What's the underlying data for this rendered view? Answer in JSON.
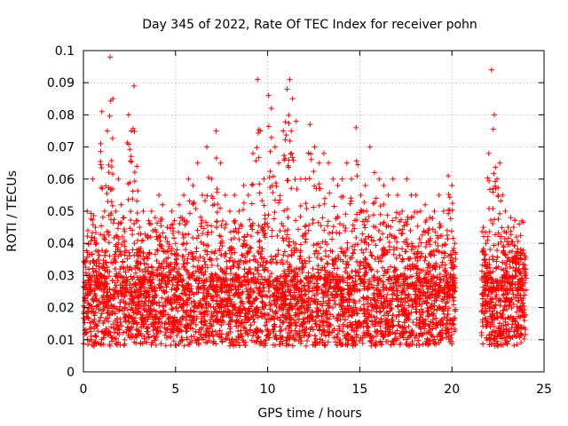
{
  "chart_data": {
    "type": "scatter",
    "title": "Day 345 of 2022, Rate Of TEC Index for receiver pohn",
    "xlabel": "GPS time / hours",
    "ylabel": "ROTI / TECUs",
    "xlim": [
      0,
      25
    ],
    "ylim": [
      0,
      0.1
    ],
    "xticks": [
      "0",
      "5",
      "10",
      "15",
      "20",
      "25"
    ],
    "yticks": [
      "0",
      "0.01",
      "0.02",
      "0.03",
      "0.04",
      "0.05",
      "0.06",
      "0.07",
      "0.08",
      "0.09",
      "0.1"
    ],
    "grid": true,
    "legend": "none",
    "marker": "+",
    "color": "#ff0000",
    "data_gap_hours": [
      20.2,
      21.6
    ],
    "series": [
      {
        "x": [
          0.05,
          0.2,
          0.35,
          0.5,
          0.65,
          0.8,
          1.0,
          1.15,
          1.3,
          1.45,
          1.6,
          1.75,
          1.9,
          2.05,
          2.2,
          2.45,
          2.6,
          2.75,
          2.9,
          3.05,
          3.25,
          3.5,
          3.7,
          3.9,
          4.1,
          4.3,
          4.55,
          4.8,
          5.0,
          5.2,
          5.45,
          5.7,
          5.95,
          6.2,
          6.45,
          6.7,
          6.95,
          7.2,
          7.45,
          7.7,
          7.95,
          8.2,
          8.45,
          8.7,
          8.95,
          9.2,
          9.45,
          9.6,
          9.8,
          10.05,
          10.2,
          10.4,
          10.6,
          10.85,
          11.05,
          11.2,
          11.35,
          11.55,
          11.8,
          12.05,
          12.3,
          12.55,
          12.8,
          13.05,
          13.3,
          13.55,
          13.8,
          14.05,
          14.3,
          14.55,
          14.8,
          15.05,
          15.3,
          15.55,
          15.8,
          16.05,
          16.3,
          16.55,
          16.8,
          17.05,
          17.3,
          17.55,
          17.8,
          18.05,
          18.3,
          18.55,
          18.8,
          19.05,
          19.3,
          19.55,
          19.8,
          20.0,
          20.15,
          21.7,
          21.85,
          22.0,
          22.15,
          22.3,
          22.45,
          22.6,
          22.75,
          22.9,
          23.05,
          23.2,
          23.35,
          23.5,
          23.65,
          23.8,
          23.95
        ],
        "y": [
          0.034,
          0.05,
          0.03,
          0.06,
          0.045,
          0.035,
          0.081,
          0.05,
          0.075,
          0.098,
          0.085,
          0.05,
          0.06,
          0.052,
          0.048,
          0.08,
          0.075,
          0.089,
          0.064,
          0.045,
          0.05,
          0.042,
          0.05,
          0.048,
          0.055,
          0.052,
          0.045,
          0.05,
          0.04,
          0.052,
          0.055,
          0.06,
          0.058,
          0.065,
          0.055,
          0.07,
          0.06,
          0.075,
          0.065,
          0.055,
          0.05,
          0.055,
          0.05,
          0.058,
          0.055,
          0.068,
          0.091,
          0.075,
          0.06,
          0.086,
          0.082,
          0.07,
          0.065,
          0.075,
          0.088,
          0.091,
          0.085,
          0.078,
          0.06,
          0.06,
          0.077,
          0.07,
          0.065,
          0.068,
          0.065,
          0.06,
          0.058,
          0.06,
          0.065,
          0.06,
          0.076,
          0.055,
          0.058,
          0.07,
          0.062,
          0.06,
          0.058,
          0.055,
          0.06,
          0.055,
          0.05,
          0.06,
          0.055,
          0.055,
          0.05,
          0.052,
          0.048,
          0.05,
          0.055,
          0.05,
          0.061,
          0.058,
          0.04,
          0.045,
          0.04,
          0.068,
          0.094,
          0.08,
          0.06,
          0.065,
          0.055,
          0.05,
          0.045,
          0.048,
          0.045,
          0.042,
          0.046,
          0.047,
          0.035
        ]
      }
    ]
  }
}
